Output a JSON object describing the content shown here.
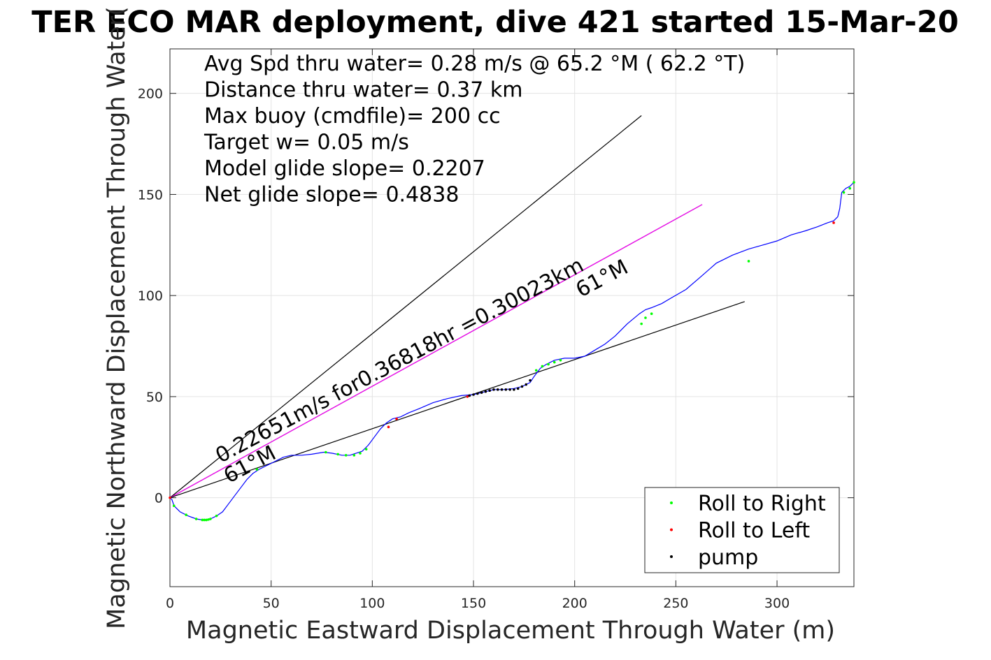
{
  "chart_data": {
    "type": "line",
    "title": "TER ECO MAR deployment, dive 421 started 15-Mar-20",
    "xlabel": "Magnetic Eastward Displacement Through Water (m)",
    "ylabel": "Magnetic Northward Displacement Through Water(",
    "xlim": [
      0,
      338
    ],
    "ylim": [
      -44,
      222
    ],
    "xticks": [
      0,
      50,
      100,
      150,
      200,
      250,
      300
    ],
    "yticks": [
      0,
      50,
      100,
      150,
      200
    ],
    "grid": true,
    "info_text": [
      "Avg Spd thru water=  0.28 m/s @  65.2 °M ( 62.2 °T)",
      "Distance thru water=  0.37 km",
      "Max buoy (cmdfile)= 200 cc",
      "Target w= 0.05 m/s",
      "Model glide slope= 0.2207",
      "Net glide slope= 0.4838"
    ],
    "annotations": [
      {
        "text": "0.22651m/s for0.36818hr =0.30023km",
        "x": 25,
        "y": 17,
        "angle": 28
      },
      {
        "text": "61°M",
        "x": 29,
        "y": 7,
        "angle": 28
      },
      {
        "text": "61°M",
        "x": 203,
        "y": 99,
        "angle": 28
      }
    ],
    "lines": [
      {
        "name": "heading-line-1",
        "color": "#000000",
        "x": [
          0,
          233
        ],
        "y": [
          0,
          189
        ]
      },
      {
        "name": "heading-line-2",
        "color": "#000000",
        "x": [
          0,
          263
        ],
        "y": [
          0,
          145
        ]
      },
      {
        "name": "heading-line-2-overlay",
        "color": "#ff00ff",
        "x": [
          0,
          263
        ],
        "y": [
          0,
          145
        ]
      },
      {
        "name": "heading-line-3",
        "color": "#000000",
        "x": [
          0,
          284
        ],
        "y": [
          0,
          97
        ]
      }
    ],
    "track": {
      "color": "#0000ff",
      "x": [
        0,
        1,
        2,
        5,
        9,
        13,
        16,
        19,
        21,
        23,
        26,
        29,
        32,
        35,
        38,
        41,
        44,
        48,
        52,
        56,
        60,
        65,
        70,
        76,
        80,
        85,
        89,
        92,
        95,
        98,
        101,
        104,
        107,
        110,
        114,
        118,
        123,
        130,
        137,
        144,
        150,
        156,
        160,
        165,
        170,
        174,
        178,
        180,
        183,
        186,
        190,
        195,
        200,
        205,
        210,
        215,
        220,
        226,
        232,
        235,
        238,
        243,
        248,
        255,
        262,
        270,
        278,
        286,
        293,
        300,
        307,
        314,
        320,
        325,
        328,
        330,
        331,
        332,
        333,
        334,
        336,
        338
      ],
      "y": [
        0,
        -1,
        -4,
        -7,
        -9,
        -10.5,
        -11,
        -11,
        -10,
        -9,
        -7,
        -3,
        1,
        5,
        9,
        12,
        14,
        16,
        18,
        20,
        21,
        21,
        21.5,
        22.5,
        22,
        21,
        21,
        22,
        23,
        26,
        30,
        34,
        37,
        39,
        40,
        42,
        44,
        47,
        49,
        50.5,
        51,
        52.5,
        53.5,
        53.5,
        54,
        55,
        57,
        60,
        64,
        66,
        68,
        69,
        69,
        70,
        73,
        76,
        80,
        86,
        91,
        93,
        94,
        96,
        99,
        103,
        109,
        116,
        120,
        123,
        125,
        127,
        130,
        132,
        134,
        136,
        137,
        139,
        143,
        151,
        152,
        153,
        154,
        156
      ]
    },
    "markers": {
      "roll_right": {
        "color": "#00ff00",
        "x": [
          2,
          8,
          13,
          16,
          17,
          18,
          19,
          20,
          23,
          43,
          77,
          83,
          87,
          91,
          94,
          97,
          181,
          184,
          187,
          190,
          193,
          233,
          235,
          238,
          286,
          333,
          336,
          338
        ],
        "y": [
          -4,
          -8.5,
          -10.5,
          -11,
          -11,
          -11,
          -10.8,
          -10.5,
          -9,
          14,
          22.5,
          21.5,
          21,
          21,
          22,
          24,
          63,
          65,
          66,
          67,
          68,
          86,
          89,
          91,
          117,
          151,
          153,
          156
        ]
      },
      "roll_left": {
        "color": "#ff0000",
        "x": [
          0,
          108,
          112,
          147,
          328
        ],
        "y": [
          0,
          35,
          39,
          50,
          136
        ]
      },
      "pump": {
        "color": "#000000",
        "x": [
          148,
          150,
          152,
          154,
          156,
          158,
          160,
          162,
          164,
          166,
          168,
          170,
          172,
          174,
          176,
          178
        ],
        "y": [
          50.5,
          51,
          51.5,
          52,
          52.5,
          53,
          53.5,
          53.5,
          53.5,
          53.5,
          53.5,
          53.5,
          54,
          55,
          56,
          58
        ]
      }
    },
    "legend": {
      "placement": "bottom-right",
      "entries": [
        {
          "label": "Roll to Right",
          "color": "#00ff00"
        },
        {
          "label": "Roll to Left",
          "color": "#ff0000"
        },
        {
          "label": "pump",
          "color": "#000000"
        }
      ]
    }
  }
}
